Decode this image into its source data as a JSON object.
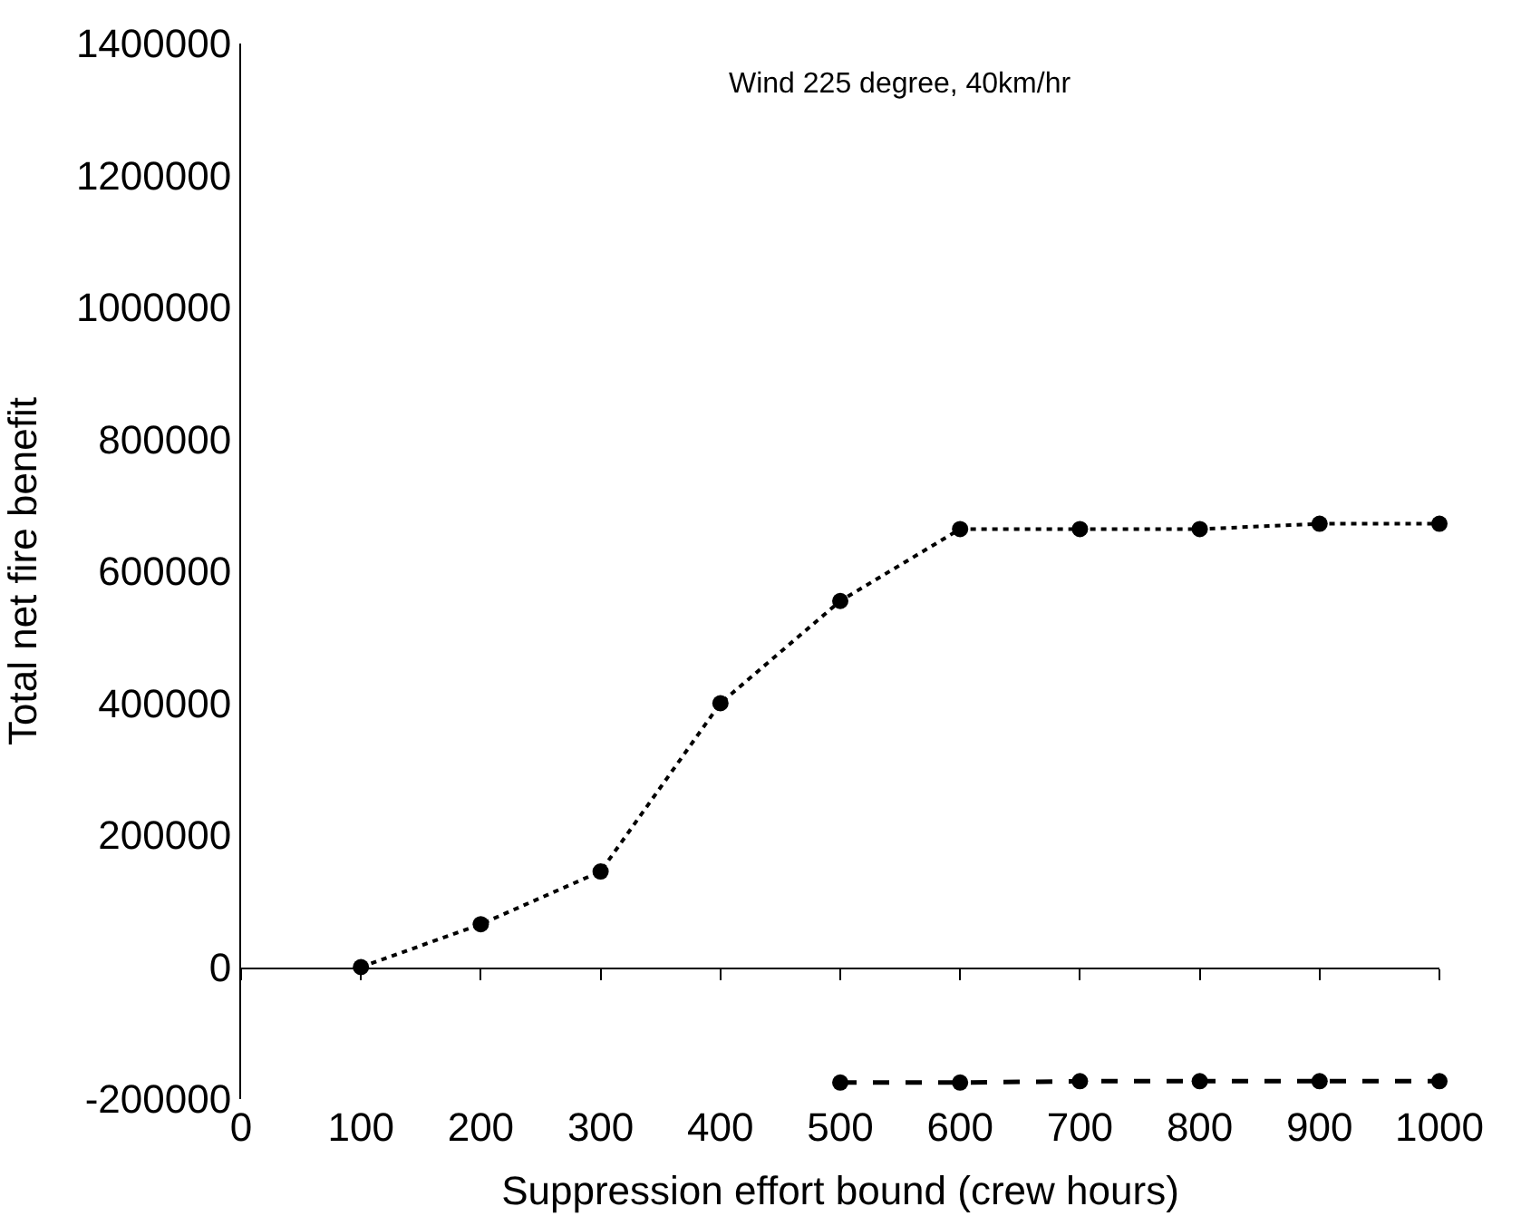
{
  "chart_data": {
    "type": "line",
    "xlabel": "Suppression effort bound (crew hours)",
    "ylabel": "Total net fire benefit",
    "annotations": [
      "Wind 225 degree, 40km/hr"
    ],
    "series": [
      {
        "color": "#000000",
        "line_style": "dotted",
        "x": [
          100,
          200,
          300,
          400,
          500,
          600,
          700,
          800,
          900,
          1000
        ],
        "values": [
          0,
          65000,
          145000,
          400000,
          555000,
          664000,
          664000,
          664000,
          672000,
          672000
        ]
      },
      {
        "color": "#000000",
        "line_style": "dashed",
        "x": [
          500,
          600,
          700,
          800,
          900,
          1000
        ],
        "values": [
          -175000,
          -175000,
          -173000,
          -173000,
          -173000,
          -173000
        ]
      }
    ],
    "marker": "circle",
    "legend": false,
    "xlim": [
      0,
      1000
    ],
    "xticks": [
      0,
      100,
      200,
      300,
      400,
      500,
      600,
      700,
      800,
      900,
      1000
    ],
    "ylim": [
      -200000,
      1400000
    ],
    "yticks": [
      -200000,
      0,
      200000,
      400000,
      600000,
      800000,
      1000000,
      1200000,
      1400000
    ]
  }
}
